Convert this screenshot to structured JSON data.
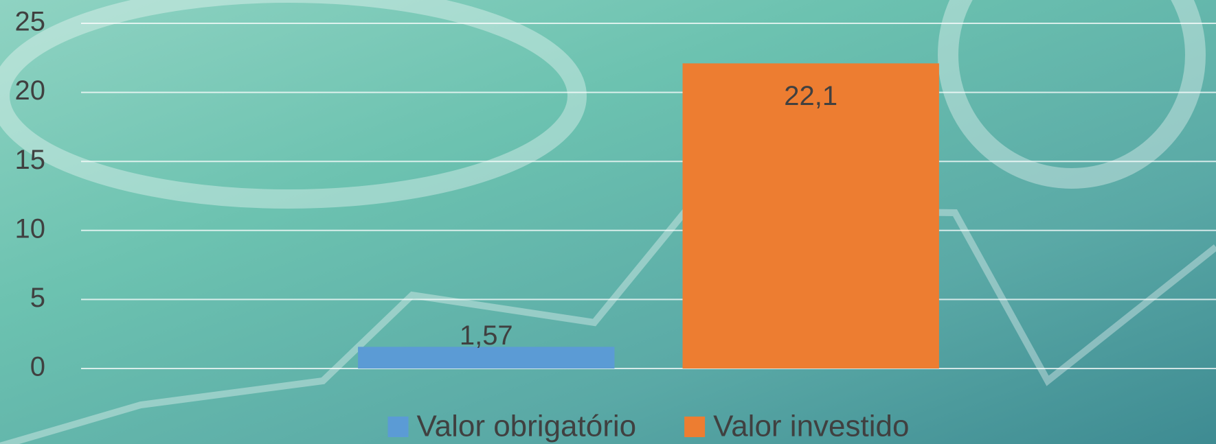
{
  "chart_data": {
    "type": "bar",
    "categories": [
      null
    ],
    "series": [
      {
        "name": "Valor obrigatório",
        "color": "#5b9bd5",
        "values": [
          1.57
        ],
        "value_labels": [
          "1,57"
        ]
      },
      {
        "name": "Valor investido",
        "color": "#ed7d31",
        "values": [
          22.1
        ],
        "value_labels": [
          "22,1"
        ]
      }
    ],
    "ylim": [
      0,
      25
    ],
    "yticks": [
      0,
      5,
      10,
      15,
      20,
      25
    ],
    "grid": true,
    "legend": "bottom"
  }
}
